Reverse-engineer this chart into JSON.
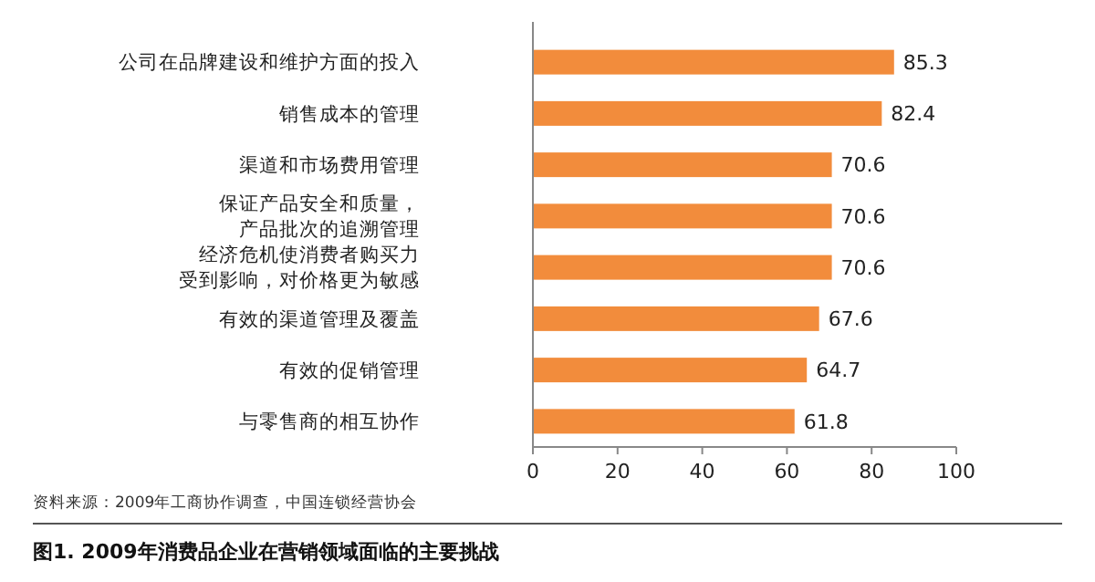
{
  "chart_data": {
    "type": "bar",
    "orientation": "horizontal",
    "title": "图1. 2009年消费品企业在营销领域面临的主要挑战",
    "categories": [
      "公司在品牌建设和维护方面的投入",
      "销售成本的管理",
      "渠道和市场费用管理",
      "保证产品安全和质量，产品批次的追溯管理",
      "经济危机使消费者购买力受到影响，对价格更为敏感",
      "有效的渠道管理及覆盖",
      "有效的促销管理",
      "与零售商的相互协作"
    ],
    "values": [
      85.3,
      82.4,
      70.6,
      70.6,
      70.6,
      67.6,
      64.7,
      61.8
    ],
    "color": "#f28c3c",
    "xlim": [
      0,
      100
    ],
    "xticks": [
      0,
      20,
      40,
      60,
      80,
      100
    ],
    "data_labels": true,
    "grid": false,
    "annotations": [
      "资料来源：2009年工商协作调查，中国连锁经营协会"
    ]
  }
}
